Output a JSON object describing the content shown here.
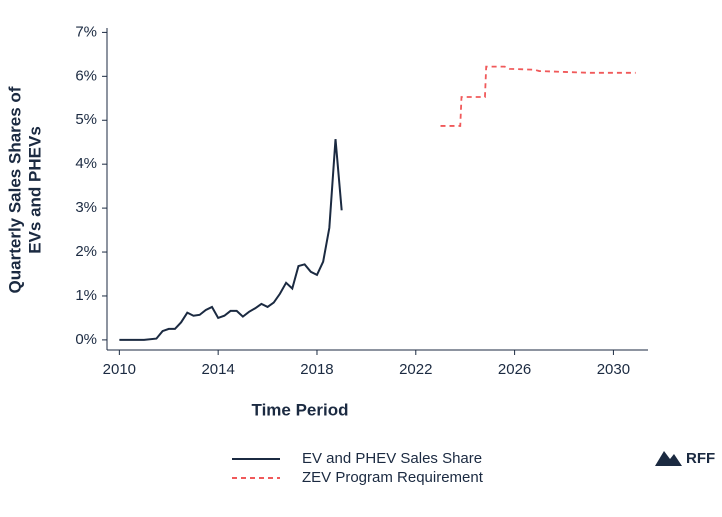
{
  "chart_data": {
    "type": "line",
    "ylabel": [
      "Quarterly Sales Shares of",
      "EVs and PHEVs"
    ],
    "xlabel": "Time Period",
    "xlim": [
      2009.5,
      2031.4
    ],
    "ylim": [
      -0.23,
      7.1
    ],
    "xticks": [
      2010,
      2014,
      2018,
      2022,
      2026,
      2030
    ],
    "yticks": [
      {
        "value": 0,
        "label": "0%"
      },
      {
        "value": 1,
        "label": "1%"
      },
      {
        "value": 2,
        "label": "2%"
      },
      {
        "value": 3,
        "label": "3%"
      },
      {
        "value": 4,
        "label": "4%"
      },
      {
        "value": 5,
        "label": "5%"
      },
      {
        "value": 6,
        "label": "6%"
      },
      {
        "value": 7,
        "label": "7%"
      }
    ],
    "series": [
      {
        "name": "EV and PHEV Sales Share",
        "color": "#1b2a41",
        "dash": false,
        "x": [
          2010,
          2010.5,
          2011,
          2011.5,
          2011.75,
          2012,
          2012.25,
          2012.5,
          2012.75,
          2013,
          2013.25,
          2013.5,
          2013.75,
          2014,
          2014.25,
          2014.5,
          2014.75,
          2015,
          2015.25,
          2015.5,
          2015.75,
          2016,
          2016.25,
          2016.5,
          2016.75,
          2017,
          2017.25,
          2017.5,
          2017.75,
          2018,
          2018.25,
          2018.5,
          2018.75,
          2019
        ],
        "values": [
          0,
          0,
          0,
          0.03,
          0.2,
          0.25,
          0.25,
          0.4,
          0.62,
          0.55,
          0.57,
          0.68,
          0.75,
          0.5,
          0.55,
          0.66,
          0.66,
          0.53,
          0.64,
          0.72,
          0.82,
          0.75,
          0.85,
          1.05,
          1.3,
          1.17,
          1.68,
          1.72,
          1.55,
          1.48,
          1.78,
          2.55,
          4.57,
          2.95
        ]
      },
      {
        "name": "ZEV Program Requirement",
        "color": "#f0595a",
        "dash": true,
        "x": [
          2023,
          2023.8,
          2023.85,
          2024.8,
          2024.85,
          2025.6,
          2025.8,
          2026.8,
          2027,
          2028,
          2029,
          2030.9
        ],
        "values": [
          4.87,
          4.87,
          5.53,
          5.53,
          6.22,
          6.22,
          6.17,
          6.15,
          6.12,
          6.1,
          6.08,
          6.08
        ]
      }
    ]
  },
  "brand": "RFF"
}
